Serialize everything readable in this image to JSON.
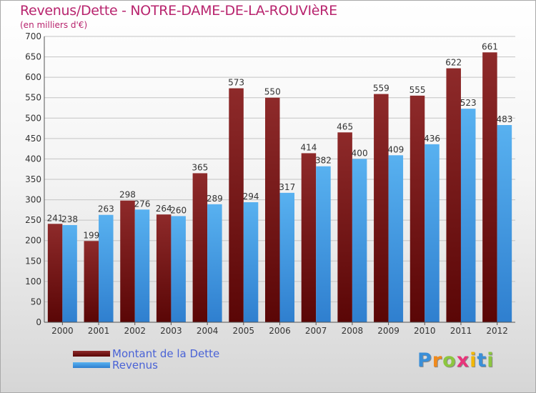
{
  "title": "Revenus/Dette - NOTRE-DAME-DE-LA-ROUVIèRE",
  "subtitle": "(en milliers d'€)",
  "logo": {
    "letters": [
      "P",
      "r",
      "o",
      "x",
      "i",
      "t",
      "i"
    ],
    "colors": [
      "#3a8fd8",
      "#f08a1c",
      "#8cc63f",
      "#e8347a",
      "#f2b705",
      "#3a8fd8",
      "#8cc63f"
    ]
  },
  "colors": {
    "series_dette": "#6e1414",
    "series_revenus": "#3f9be2",
    "title": "#b8246e",
    "legend_text": "#4a63d6"
  },
  "chart_data": {
    "type": "bar",
    "title": "Revenus/Dette - NOTRE-DAME-DE-LA-ROUVIèRE",
    "subtitle": "(en milliers d'€)",
    "categories": [
      "2000",
      "2001",
      "2002",
      "2003",
      "2004",
      "2005",
      "2006",
      "2007",
      "2008",
      "2009",
      "2010",
      "2011",
      "2012"
    ],
    "series": [
      {
        "name": "Montant de la Dette",
        "values": [
          241,
          199,
          298,
          264,
          365,
          573,
          550,
          414,
          465,
          559,
          555,
          622,
          661
        ]
      },
      {
        "name": "Revenus",
        "values": [
          238,
          263,
          276,
          260,
          289,
          294,
          317,
          382,
          400,
          409,
          436,
          523,
          483
        ]
      }
    ],
    "ylim": [
      0,
      700
    ],
    "yticks": [
      0,
      50,
      100,
      150,
      200,
      250,
      300,
      350,
      400,
      450,
      500,
      550,
      600,
      650,
      700
    ],
    "grid": true,
    "legend": "bottom-left"
  }
}
